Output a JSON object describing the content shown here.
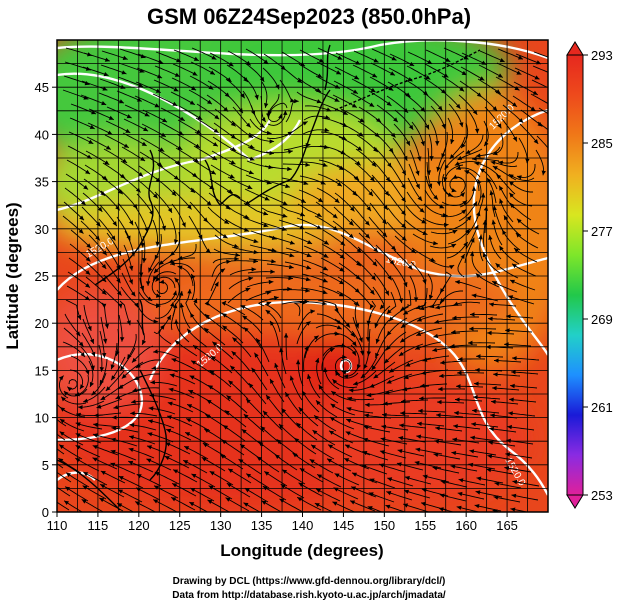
{
  "title": "GSM 06Z24Sep2023 (850.0hPa)",
  "x_axis": {
    "label": "Longitude (degrees)",
    "ticks": [
      110,
      115,
      120,
      125,
      130,
      135,
      140,
      145,
      150,
      155,
      160,
      165
    ],
    "range": [
      110,
      170
    ]
  },
  "y_axis": {
    "label": "Latitude  (degrees)",
    "ticks": [
      0,
      5,
      10,
      15,
      20,
      25,
      30,
      35,
      40,
      45
    ],
    "range": [
      0,
      50
    ]
  },
  "colorbar": {
    "ticks": [
      253,
      261,
      269,
      277,
      285,
      293
    ],
    "range": [
      253,
      293
    ],
    "colors": [
      "#e0209a",
      "#8a2be2",
      "#1a1ad8",
      "#1e90ff",
      "#22d0c8",
      "#22c84a",
      "#7ee62a",
      "#d8e620",
      "#f0b020",
      "#f07818",
      "#ee4a1c",
      "#e6281e"
    ]
  },
  "contours": [
    {
      "label": "1520.0"
    },
    {
      "label": "1520.0"
    },
    {
      "label": "1520.0"
    },
    {
      "label": "1520.0"
    },
    {
      "label": "1520.0"
    }
  ],
  "credits": {
    "line1": "Drawing by DCL (https://www.gfd-dennou.org/library/dcl/)",
    "line2": "Data from http://database.rish.kyoto-u.ac.jp/arch/jmadata/"
  },
  "colors": {
    "cold_green": "#3ec83a",
    "yellow_green": "#c8dc2a",
    "orange": "#f07a18",
    "warm_red": "#e8401c",
    "hot_red": "#e6281e",
    "pink_land": "#f06058",
    "contour": "#ffffff",
    "grid": "#000000"
  }
}
